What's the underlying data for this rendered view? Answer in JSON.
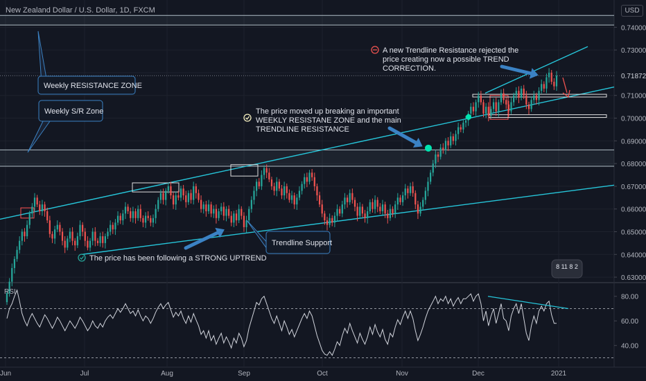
{
  "header": {
    "symbol_title": "New Zealand Dollar / U.S. Dollar, 1D, FXCM",
    "currency_unit": "USD"
  },
  "chart_data": [
    {
      "type": "candlestick",
      "title": "New Zealand Dollar / U.S. Dollar, 1D, FXCM",
      "x_ticks": [
        "Jun",
        "Jul",
        "Aug",
        "Sep",
        "Oct",
        "Nov",
        "Dec",
        "2021"
      ],
      "y_ticks": [
        "0.74000",
        "0.73000",
        "0.72000",
        "0.71000",
        "0.70000",
        "0.69000",
        "0.68000",
        "0.67000",
        "0.66000",
        "0.65000",
        "0.64000",
        "0.63000"
      ],
      "ylim": [
        0.6285,
        0.752
      ],
      "last_price": "0.71872",
      "close": [
        0.623,
        0.628,
        0.634,
        0.638,
        0.642,
        0.646,
        0.65,
        0.648,
        0.653,
        0.658,
        0.661,
        0.665,
        0.662,
        0.659,
        0.662,
        0.659,
        0.655,
        0.649,
        0.647,
        0.651,
        0.653,
        0.65,
        0.646,
        0.643,
        0.647,
        0.65,
        0.646,
        0.644,
        0.648,
        0.653,
        0.65,
        0.646,
        0.643,
        0.646,
        0.65,
        0.646,
        0.645,
        0.648,
        0.645,
        0.648,
        0.65,
        0.653,
        0.651,
        0.654,
        0.657,
        0.655,
        0.658,
        0.661,
        0.659,
        0.656,
        0.659,
        0.656,
        0.66,
        0.656,
        0.654,
        0.657,
        0.656,
        0.654,
        0.656,
        0.66,
        0.664,
        0.667,
        0.664,
        0.668,
        0.67,
        0.666,
        0.662,
        0.666,
        0.665,
        0.669,
        0.666,
        0.663,
        0.667,
        0.664,
        0.67,
        0.667,
        0.664,
        0.66,
        0.662,
        0.659,
        0.662,
        0.658,
        0.66,
        0.656,
        0.659,
        0.661,
        0.657,
        0.66,
        0.657,
        0.654,
        0.658,
        0.655,
        0.66,
        0.657,
        0.652,
        0.655,
        0.66,
        0.664,
        0.668,
        0.672,
        0.67,
        0.675,
        0.678,
        0.676,
        0.673,
        0.67,
        0.668,
        0.672,
        0.669,
        0.666,
        0.67,
        0.667,
        0.664,
        0.666,
        0.662,
        0.665,
        0.668,
        0.671,
        0.674,
        0.672,
        0.676,
        0.674,
        0.67,
        0.666,
        0.662,
        0.658,
        0.655,
        0.653,
        0.656,
        0.654,
        0.657,
        0.66,
        0.658,
        0.662,
        0.665,
        0.663,
        0.667,
        0.664,
        0.661,
        0.657,
        0.661,
        0.658,
        0.656,
        0.659,
        0.663,
        0.66,
        0.664,
        0.661,
        0.659,
        0.662,
        0.658,
        0.656,
        0.66,
        0.658,
        0.662,
        0.665,
        0.663,
        0.666,
        0.669,
        0.667,
        0.67,
        0.667,
        0.662,
        0.658,
        0.661,
        0.664,
        0.668,
        0.672,
        0.676,
        0.68,
        0.684,
        0.683,
        0.687,
        0.686,
        0.69,
        0.688,
        0.692,
        0.69,
        0.693,
        0.696,
        0.695,
        0.698,
        0.699,
        0.702,
        0.705,
        0.703,
        0.707,
        0.71,
        0.707,
        0.702,
        0.705,
        0.701,
        0.704,
        0.707,
        0.703,
        0.707,
        0.711,
        0.708,
        0.706,
        0.703,
        0.707,
        0.71,
        0.712,
        0.709,
        0.713,
        0.71,
        0.706,
        0.704,
        0.708,
        0.71,
        0.708,
        0.712,
        0.715,
        0.713,
        0.718,
        0.72,
        0.716,
        0.714,
        0.7187
      ],
      "annotations": [
        "Weekly RESISTANCE ZONE",
        "Weekly S/R Zone",
        "Trendline Support",
        "The price has been following a STRONG UPTREND",
        "The price moved up breaking an important WEEKLY RESISTANE ZONE and the main TRENDLINE RESISTANCE",
        "A new Trendline Resistance rejected the price creating now a possible TREND CORRECTION."
      ],
      "watermark_badge": "8 11 8 2"
    },
    {
      "type": "line",
      "title": "RSI",
      "y_ticks": [
        "80.00",
        "60.00",
        "40.00"
      ],
      "ylim": [
        28,
        90
      ],
      "dashed_levels": [
        70,
        30
      ],
      "values": [
        62,
        70,
        74,
        80,
        85,
        76,
        66,
        60,
        56,
        62,
        66,
        62,
        58,
        55,
        60,
        65,
        62,
        58,
        54,
        58,
        63,
        60,
        56,
        52,
        56,
        60,
        57,
        54,
        58,
        63,
        60,
        56,
        52,
        55,
        60,
        56,
        54,
        58,
        55,
        60,
        63,
        65,
        62,
        66,
        70,
        67,
        70,
        74,
        70,
        66,
        68,
        64,
        69,
        64,
        60,
        64,
        62,
        58,
        62,
        67,
        71,
        74,
        70,
        73,
        75,
        69,
        63,
        67,
        64,
        68,
        62,
        58,
        64,
        59,
        66,
        61,
        56,
        49,
        52,
        46,
        52,
        44,
        48,
        41,
        46,
        50,
        42,
        47,
        43,
        38,
        46,
        42,
        50,
        46,
        39,
        44,
        54,
        61,
        68,
        75,
        73,
        78,
        80,
        74,
        68,
        62,
        58,
        64,
        58,
        52,
        60,
        55,
        49,
        53,
        47,
        52,
        57,
        62,
        66,
        62,
        68,
        64,
        56,
        48,
        42,
        36,
        33,
        32,
        35,
        32,
        37,
        43,
        40,
        48,
        54,
        50,
        58,
        52,
        47,
        42,
        50,
        45,
        41,
        47,
        55,
        49,
        57,
        51,
        47,
        53,
        45,
        41,
        50,
        47,
        55,
        61,
        57,
        63,
        68,
        62,
        68,
        62,
        52,
        44,
        49,
        55,
        62,
        68,
        72,
        76,
        80,
        74,
        78,
        76,
        80,
        74,
        78,
        72,
        76,
        79,
        74,
        78,
        78,
        80,
        82,
        76,
        80,
        82,
        74,
        60,
        68,
        56,
        64,
        70,
        58,
        66,
        74,
        62,
        60,
        52,
        64,
        70,
        74,
        66,
        74,
        62,
        50,
        44,
        56,
        64,
        58,
        68,
        72,
        68,
        74,
        76,
        65,
        58,
        58
      ]
    }
  ]
}
